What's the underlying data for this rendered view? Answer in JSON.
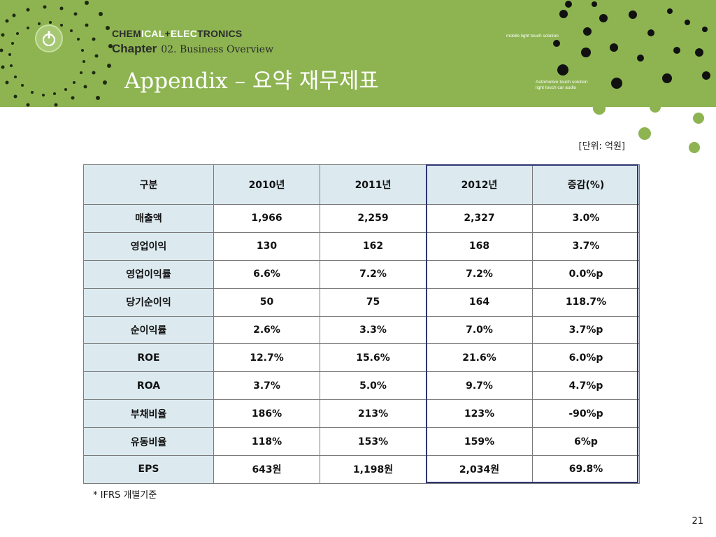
{
  "header": {
    "brand_a": "CHEM",
    "brand_b": "ICAL",
    "brand_c": "+",
    "brand_d": "ELEC",
    "brand_e": "TRONICS",
    "chapter_label": "Chapter",
    "chapter_sub": "02. Business Overview",
    "title": "Appendix – 요약 재무제표",
    "tag_mobile": "mobile light touch solution",
    "tag_auto_1": "Automotive touch solution",
    "tag_auto_2": "light touch car audio"
  },
  "unit_note": "[단위: 억원]",
  "table": {
    "headers": [
      "구분",
      "2010년",
      "2011년",
      "2012년",
      "증감(%)"
    ],
    "rows": [
      [
        "매출액",
        "1,966",
        "2,259",
        "2,327",
        "3.0%"
      ],
      [
        "영업이익",
        "130",
        "162",
        "168",
        "3.7%"
      ],
      [
        "영업이익률",
        "6.6%",
        "7.2%",
        "7.2%",
        "0.0%p"
      ],
      [
        "당기순이익",
        "50",
        "75",
        "164",
        "118.7%"
      ],
      [
        "순이익률",
        "2.6%",
        "3.3%",
        "7.0%",
        "3.7%p"
      ],
      [
        "ROE",
        "12.7%",
        "15.6%",
        "21.6%",
        "6.0%p"
      ],
      [
        "ROA",
        "3.7%",
        "5.0%",
        "9.7%",
        "4.7%p"
      ],
      [
        "부채비율",
        "186%",
        "213%",
        "123%",
        "-90%p"
      ],
      [
        "유동비율",
        "118%",
        "153%",
        "159%",
        "6%p"
      ],
      [
        "EPS",
        "643원",
        "1,198원",
        "2,034원",
        "69.8%"
      ]
    ]
  },
  "footnote": "* IFRS 개별기준",
  "page_number": "21",
  "colors": {
    "header_green": "#8db451",
    "dot_dark": "#111111",
    "dot_light": "#8db451",
    "table_label_bg": "#dceaf0",
    "highlight_border": "#2e3474"
  },
  "icons": [
    "power-icon"
  ]
}
